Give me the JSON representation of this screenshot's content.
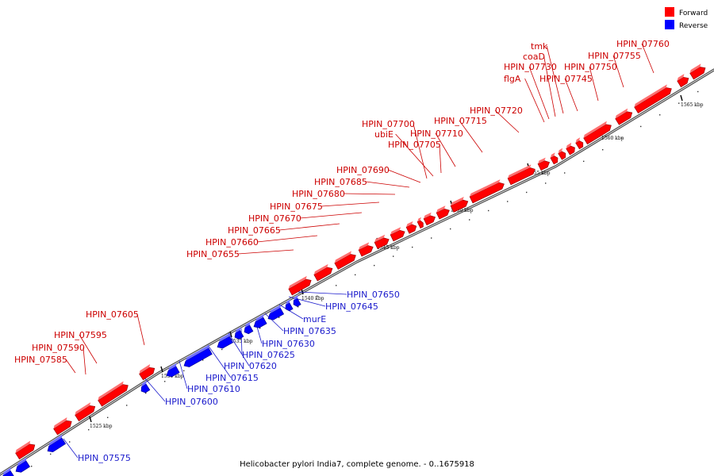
{
  "legend": {
    "forward": {
      "label": "Forward",
      "color": "#ff0000"
    },
    "reverse": {
      "label": "Reverse",
      "color": "#0000ff"
    }
  },
  "caption": "Helicobacter pylori India7, complete genome. - 0..1675918",
  "scale_ticks": [
    {
      "label": "1525 kbp"
    },
    {
      "label": "1530 kbp"
    },
    {
      "label": "1535 kbp"
    },
    {
      "label": "1540 kbp"
    },
    {
      "label": "1545 kbp"
    },
    {
      "label": "1550 kbp"
    },
    {
      "label": "1555 kbp"
    },
    {
      "label": "1560 kbp"
    },
    {
      "label": "1565 kbp"
    }
  ],
  "forward_labels": [
    "HPIN_07585",
    "HPIN_07590",
    "HPIN_07595",
    "HPIN_07605",
    "HPIN_07655",
    "HPIN_07660",
    "HPIN_07665",
    "HPIN_07670",
    "HPIN_07675",
    "HPIN_07680",
    "HPIN_07685",
    "HPIN_07690",
    "HPIN_07700",
    "ubiE",
    "HPIN_07705",
    "HPIN_07710",
    "HPIN_07715",
    "HPIN_07720",
    "HPIN_07730",
    "coaD",
    "tmk",
    "flgA",
    "HPIN_07745",
    "HPIN_07750",
    "HPIN_07755",
    "HPIN_07760"
  ],
  "reverse_labels": [
    "HPIN_07575",
    "HPIN_07600",
    "HPIN_07610",
    "HPIN_07615",
    "HPIN_07620",
    "HPIN_07625",
    "HPIN_07630",
    "HPIN_07635",
    "murE",
    "HPIN_07645",
    "HPIN_07650"
  ]
}
